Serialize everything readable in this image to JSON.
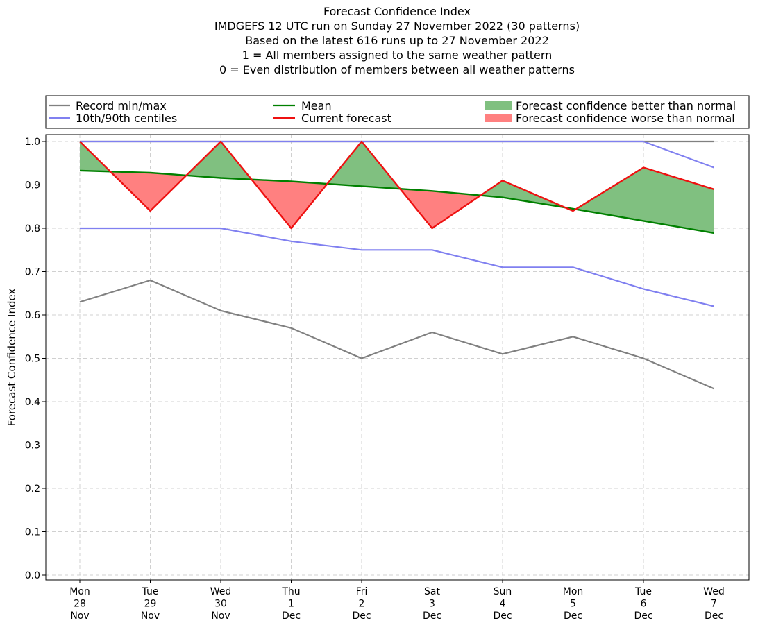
{
  "chart_data": {
    "type": "line",
    "title_lines": [
      "Forecast Confidence Index",
      "IMDGEFS 12 UTC run on Sunday 27 November 2022 (30 patterns)",
      "Based on the latest 616 runs up to 27 November 2022",
      "1 = All members assigned to the same weather pattern",
      "0 = Even distribution of members between all weather patterns"
    ],
    "ylabel": "Forecast Confidence Index",
    "ylim": [
      0,
      1
    ],
    "yticks": [
      "0.0",
      "0.1",
      "0.2",
      "0.3",
      "0.4",
      "0.5",
      "0.6",
      "0.7",
      "0.8",
      "0.9",
      "1.0"
    ],
    "x_labels": [
      [
        "Mon",
        "28",
        "Nov"
      ],
      [
        "Tue",
        "29",
        "Nov"
      ],
      [
        "Wed",
        "30",
        "Nov"
      ],
      [
        "Thu",
        "1",
        "Dec"
      ],
      [
        "Fri",
        "2",
        "Dec"
      ],
      [
        "Sat",
        "3",
        "Dec"
      ],
      [
        "Sun",
        "4",
        "Dec"
      ],
      [
        "Mon",
        "5",
        "Dec"
      ],
      [
        "Tue",
        "6",
        "Dec"
      ],
      [
        "Wed",
        "7",
        "Dec"
      ]
    ],
    "grid": true,
    "legend": {
      "placement": "top",
      "entries": [
        {
          "label": "Record min/max",
          "color": "#808080",
          "kind": "line"
        },
        {
          "label": "10th/90th centiles",
          "color": "#8080f0",
          "kind": "line"
        },
        {
          "label": "Mean",
          "color": "#008000",
          "kind": "line"
        },
        {
          "label": "Current forecast",
          "color": "#ee1111",
          "kind": "line"
        },
        {
          "label": "Forecast confidence better than normal",
          "color": "#80c080",
          "kind": "patch"
        },
        {
          "label": "Forecast confidence worse than normal",
          "color": "#ff8080",
          "kind": "patch"
        }
      ]
    },
    "series": {
      "record_max": [
        1.0,
        1.0,
        1.0,
        1.0,
        1.0,
        1.0,
        1.0,
        1.0,
        1.0,
        1.0
      ],
      "record_min": [
        0.63,
        0.68,
        0.61,
        0.57,
        0.5,
        0.56,
        0.51,
        0.55,
        0.5,
        0.43
      ],
      "p90": [
        1.0,
        1.0,
        1.0,
        1.0,
        1.0,
        1.0,
        1.0,
        1.0,
        1.0,
        0.94
      ],
      "p10": [
        0.8,
        0.8,
        0.8,
        0.77,
        0.75,
        0.75,
        0.71,
        0.71,
        0.66,
        0.62
      ],
      "mean": [
        0.933,
        0.928,
        0.916,
        0.908,
        0.897,
        0.886,
        0.871,
        0.845,
        0.817,
        0.789
      ],
      "current": [
        1.0,
        0.84,
        1.0,
        0.8,
        1.0,
        0.8,
        0.91,
        0.84,
        0.94,
        0.89
      ]
    },
    "colors": {
      "record": "#808080",
      "centiles": "#8080f0",
      "mean": "#008000",
      "current": "#ee1111",
      "better": "#80c080",
      "worse": "#ff8080"
    }
  }
}
